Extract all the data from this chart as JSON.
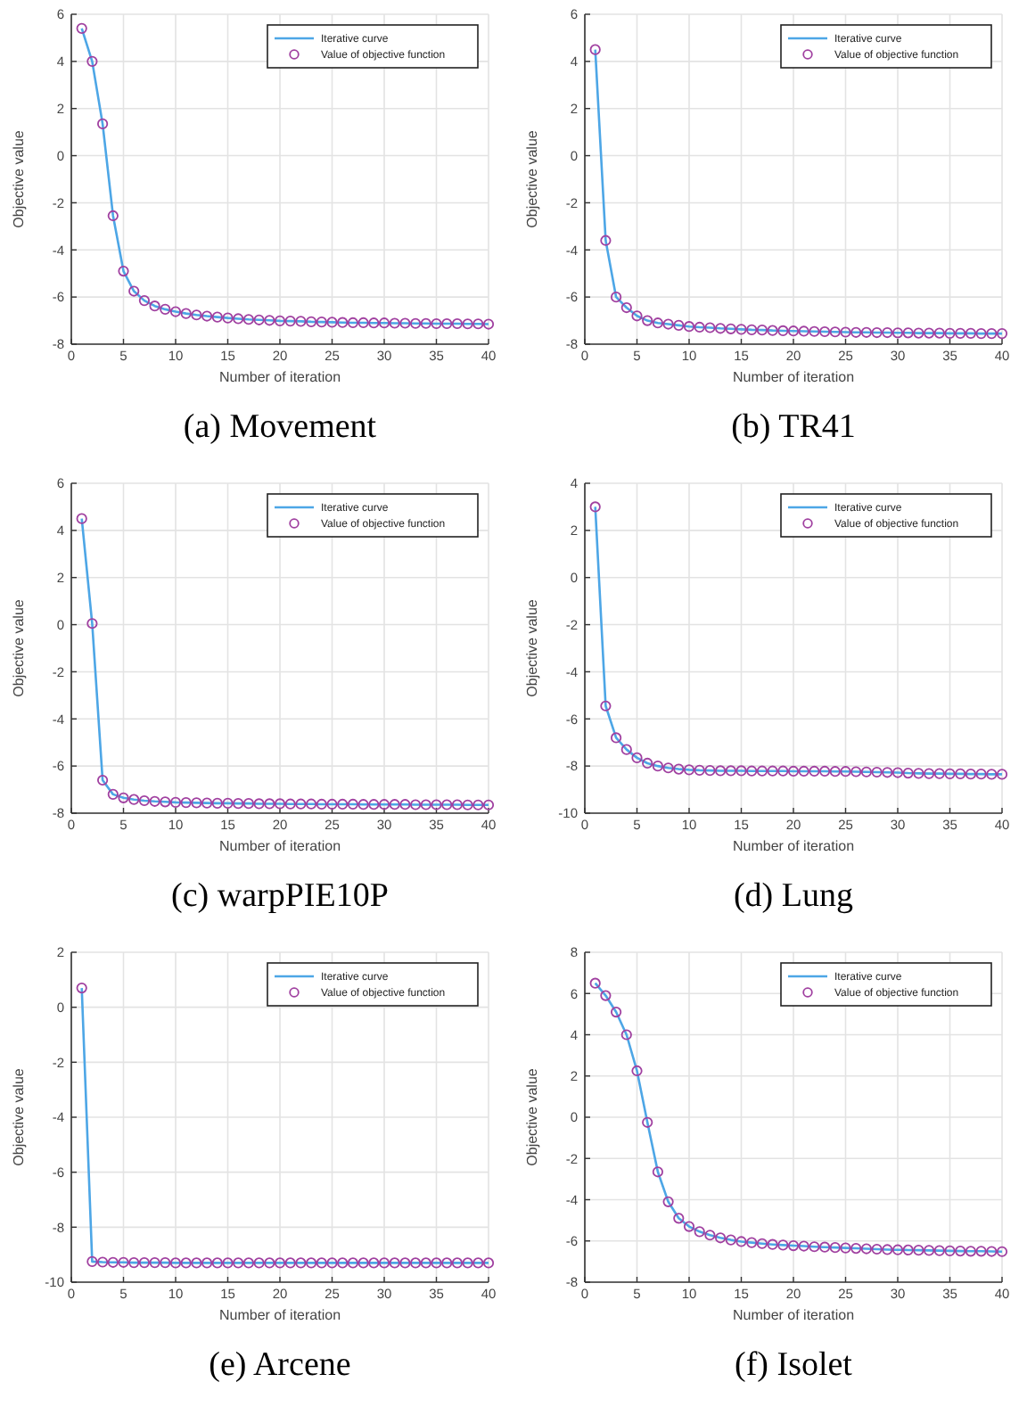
{
  "chart_data": [
    {
      "type": "line",
      "title": "(a) Movement",
      "xlabel": "Number of iteration",
      "ylabel": "Objective value",
      "x": [
        1,
        2,
        3,
        4,
        5,
        6,
        7,
        8,
        9,
        10,
        11,
        12,
        13,
        14,
        15,
        16,
        17,
        18,
        19,
        20,
        21,
        22,
        23,
        24,
        25,
        26,
        27,
        28,
        29,
        30,
        31,
        32,
        33,
        34,
        35,
        36,
        37,
        38,
        39,
        40
      ],
      "xlim": [
        0,
        40
      ],
      "xticks": [
        0,
        5,
        10,
        15,
        20,
        25,
        30,
        35,
        40
      ],
      "ylim": [
        -8,
        6
      ],
      "yticks": [
        -8,
        -6,
        -4,
        -2,
        0,
        2,
        4,
        6
      ],
      "grid": true,
      "legend": "top right",
      "series": [
        {
          "name": "Iterative curve",
          "type": "line",
          "marker": "none",
          "color": "#4da6e6",
          "values": [
            5.4,
            4.0,
            1.35,
            -2.55,
            -4.9,
            -5.75,
            -6.15,
            -6.38,
            -6.52,
            -6.62,
            -6.7,
            -6.76,
            -6.81,
            -6.85,
            -6.89,
            -6.92,
            -6.95,
            -6.97,
            -6.99,
            -7.01,
            -7.02,
            -7.03,
            -7.05,
            -7.06,
            -7.07,
            -7.08,
            -7.09,
            -7.09,
            -7.1,
            -7.1,
            -7.11,
            -7.11,
            -7.12,
            -7.12,
            -7.13,
            -7.13,
            -7.13,
            -7.14,
            -7.14,
            -7.15
          ]
        },
        {
          "name": "Value of objective function",
          "type": "scatter",
          "marker": "circle",
          "color": "#a040a0",
          "values": [
            5.4,
            4.0,
            1.35,
            -2.55,
            -4.9,
            -5.75,
            -6.15,
            -6.38,
            -6.52,
            -6.62,
            -6.7,
            -6.76,
            -6.81,
            -6.85,
            -6.89,
            -6.92,
            -6.95,
            -6.97,
            -6.99,
            -7.01,
            -7.02,
            -7.03,
            -7.05,
            -7.06,
            -7.07,
            -7.08,
            -7.09,
            -7.09,
            -7.1,
            -7.1,
            -7.11,
            -7.11,
            -7.12,
            -7.12,
            -7.13,
            -7.13,
            -7.13,
            -7.14,
            -7.14,
            -7.15
          ]
        }
      ]
    },
    {
      "type": "line",
      "title": "(b) TR41",
      "xlabel": "Number of iteration",
      "ylabel": "Objective value",
      "x": [
        1,
        2,
        3,
        4,
        5,
        6,
        7,
        8,
        9,
        10,
        11,
        12,
        13,
        14,
        15,
        16,
        17,
        18,
        19,
        20,
        21,
        22,
        23,
        24,
        25,
        26,
        27,
        28,
        29,
        30,
        31,
        32,
        33,
        34,
        35,
        36,
        37,
        38,
        39,
        40
      ],
      "xlim": [
        0,
        40
      ],
      "xticks": [
        0,
        5,
        10,
        15,
        20,
        25,
        30,
        35,
        40
      ],
      "ylim": [
        -8,
        6
      ],
      "yticks": [
        -8,
        -6,
        -4,
        -2,
        0,
        2,
        4,
        6
      ],
      "grid": true,
      "legend": "top right",
      "series": [
        {
          "name": "Iterative curve",
          "type": "line",
          "marker": "none",
          "color": "#4da6e6",
          "values": [
            4.5,
            -3.6,
            -6.0,
            -6.45,
            -6.8,
            -7.0,
            -7.1,
            -7.15,
            -7.2,
            -7.25,
            -7.28,
            -7.3,
            -7.33,
            -7.35,
            -7.37,
            -7.39,
            -7.4,
            -7.42,
            -7.43,
            -7.44,
            -7.45,
            -7.46,
            -7.47,
            -7.48,
            -7.49,
            -7.5,
            -7.5,
            -7.51,
            -7.51,
            -7.52,
            -7.52,
            -7.53,
            -7.53,
            -7.53,
            -7.54,
            -7.54,
            -7.54,
            -7.55,
            -7.55,
            -7.55
          ]
        },
        {
          "name": "Value of objective function",
          "type": "scatter",
          "marker": "circle",
          "color": "#a040a0",
          "values": [
            4.5,
            -3.6,
            -6.0,
            -6.45,
            -6.8,
            -7.0,
            -7.1,
            -7.15,
            -7.2,
            -7.25,
            -7.28,
            -7.3,
            -7.33,
            -7.35,
            -7.37,
            -7.39,
            -7.4,
            -7.42,
            -7.43,
            -7.44,
            -7.45,
            -7.46,
            -7.47,
            -7.48,
            -7.49,
            -7.5,
            -7.5,
            -7.51,
            -7.51,
            -7.52,
            -7.52,
            -7.53,
            -7.53,
            -7.53,
            -7.54,
            -7.54,
            -7.54,
            -7.55,
            -7.55,
            -7.55
          ]
        }
      ]
    },
    {
      "type": "line",
      "title": "(c) warpPIE10P",
      "xlabel": "Number of iteration",
      "ylabel": "Objective value",
      "x": [
        1,
        2,
        3,
        4,
        5,
        6,
        7,
        8,
        9,
        10,
        11,
        12,
        13,
        14,
        15,
        16,
        17,
        18,
        19,
        20,
        21,
        22,
        23,
        24,
        25,
        26,
        27,
        28,
        29,
        30,
        31,
        32,
        33,
        34,
        35,
        36,
        37,
        38,
        39,
        40
      ],
      "xlim": [
        0,
        40
      ],
      "xticks": [
        0,
        5,
        10,
        15,
        20,
        25,
        30,
        35,
        40
      ],
      "ylim": [
        -8,
        6
      ],
      "yticks": [
        -8,
        -6,
        -4,
        -2,
        0,
        2,
        4,
        6
      ],
      "grid": true,
      "legend": "top right",
      "series": [
        {
          "name": "Iterative curve",
          "type": "line",
          "marker": "none",
          "color": "#4da6e6",
          "values": [
            4.5,
            0.05,
            -6.6,
            -7.2,
            -7.35,
            -7.42,
            -7.47,
            -7.5,
            -7.52,
            -7.54,
            -7.55,
            -7.56,
            -7.57,
            -7.58,
            -7.58,
            -7.59,
            -7.59,
            -7.6,
            -7.6,
            -7.6,
            -7.61,
            -7.61,
            -7.61,
            -7.62,
            -7.62,
            -7.62,
            -7.62,
            -7.63,
            -7.63,
            -7.63,
            -7.63,
            -7.63,
            -7.64,
            -7.64,
            -7.64,
            -7.64,
            -7.64,
            -7.65,
            -7.65,
            -7.65
          ]
        },
        {
          "name": "Value of objective function",
          "type": "scatter",
          "marker": "circle",
          "color": "#a040a0",
          "values": [
            4.5,
            0.05,
            -6.6,
            -7.2,
            -7.35,
            -7.42,
            -7.47,
            -7.5,
            -7.52,
            -7.54,
            -7.55,
            -7.56,
            -7.57,
            -7.58,
            -7.58,
            -7.59,
            -7.59,
            -7.6,
            -7.6,
            -7.6,
            -7.61,
            -7.61,
            -7.61,
            -7.62,
            -7.62,
            -7.62,
            -7.62,
            -7.63,
            -7.63,
            -7.63,
            -7.63,
            -7.63,
            -7.64,
            -7.64,
            -7.64,
            -7.64,
            -7.64,
            -7.65,
            -7.65,
            -7.65
          ]
        }
      ]
    },
    {
      "type": "line",
      "title": "(d) Lung",
      "xlabel": "Number of iteration",
      "ylabel": "Objective value",
      "x": [
        1,
        2,
        3,
        4,
        5,
        6,
        7,
        8,
        9,
        10,
        11,
        12,
        13,
        14,
        15,
        16,
        17,
        18,
        19,
        20,
        21,
        22,
        23,
        24,
        25,
        26,
        27,
        28,
        29,
        30,
        31,
        32,
        33,
        34,
        35,
        36,
        37,
        38,
        39,
        40
      ],
      "xlim": [
        0,
        40
      ],
      "xticks": [
        0,
        5,
        10,
        15,
        20,
        25,
        30,
        35,
        40
      ],
      "ylim": [
        -10,
        4
      ],
      "yticks": [
        -10,
        -8,
        -6,
        -4,
        -2,
        0,
        2,
        4
      ],
      "grid": true,
      "legend": "top right",
      "series": [
        {
          "name": "Iterative curve",
          "type": "line",
          "marker": "none",
          "color": "#4da6e6",
          "values": [
            3.0,
            -5.45,
            -6.8,
            -7.3,
            -7.65,
            -7.88,
            -8.0,
            -8.08,
            -8.13,
            -8.16,
            -8.18,
            -8.19,
            -8.2,
            -8.2,
            -8.2,
            -8.21,
            -8.21,
            -8.21,
            -8.21,
            -8.22,
            -8.22,
            -8.22,
            -8.22,
            -8.23,
            -8.23,
            -8.24,
            -8.25,
            -8.26,
            -8.27,
            -8.28,
            -8.3,
            -8.31,
            -8.32,
            -8.32,
            -8.33,
            -8.33,
            -8.34,
            -8.34,
            -8.35,
            -8.35
          ]
        },
        {
          "name": "Value of objective function",
          "type": "scatter",
          "marker": "circle",
          "color": "#a040a0",
          "values": [
            3.0,
            -5.45,
            -6.8,
            -7.3,
            -7.65,
            -7.88,
            -8.0,
            -8.08,
            -8.13,
            -8.16,
            -8.18,
            -8.19,
            -8.2,
            -8.2,
            -8.2,
            -8.21,
            -8.21,
            -8.21,
            -8.21,
            -8.22,
            -8.22,
            -8.22,
            -8.22,
            -8.23,
            -8.23,
            -8.24,
            -8.25,
            -8.26,
            -8.27,
            -8.28,
            -8.3,
            -8.31,
            -8.32,
            -8.32,
            -8.33,
            -8.33,
            -8.34,
            -8.34,
            -8.35,
            -8.35
          ]
        }
      ]
    },
    {
      "type": "line",
      "title": "(e) Arcene",
      "xlabel": "Number of iteration",
      "ylabel": "Objective value",
      "x": [
        1,
        2,
        3,
        4,
        5,
        6,
        7,
        8,
        9,
        10,
        11,
        12,
        13,
        14,
        15,
        16,
        17,
        18,
        19,
        20,
        21,
        22,
        23,
        24,
        25,
        26,
        27,
        28,
        29,
        30,
        31,
        32,
        33,
        34,
        35,
        36,
        37,
        38,
        39,
        40
      ],
      "xlim": [
        0,
        40
      ],
      "xticks": [
        0,
        5,
        10,
        15,
        20,
        25,
        30,
        35,
        40
      ],
      "ylim": [
        -10,
        2
      ],
      "yticks": [
        -10,
        -8,
        -6,
        -4,
        -2,
        0,
        2
      ],
      "grid": true,
      "legend": "top right",
      "series": [
        {
          "name": "Iterative curve",
          "type": "line",
          "marker": "none",
          "color": "#4da6e6",
          "values": [
            0.7,
            -9.25,
            -9.27,
            -9.28,
            -9.28,
            -9.29,
            -9.29,
            -9.29,
            -9.29,
            -9.3,
            -9.3,
            -9.3,
            -9.3,
            -9.3,
            -9.3,
            -9.3,
            -9.3,
            -9.3,
            -9.3,
            -9.3,
            -9.3,
            -9.3,
            -9.3,
            -9.3,
            -9.3,
            -9.3,
            -9.3,
            -9.3,
            -9.3,
            -9.3,
            -9.3,
            -9.3,
            -9.3,
            -9.3,
            -9.3,
            -9.3,
            -9.3,
            -9.3,
            -9.3,
            -9.3
          ]
        },
        {
          "name": "Value of objective function",
          "type": "scatter",
          "marker": "circle",
          "color": "#a040a0",
          "values": [
            0.7,
            -9.25,
            -9.27,
            -9.28,
            -9.28,
            -9.29,
            -9.29,
            -9.29,
            -9.29,
            -9.3,
            -9.3,
            -9.3,
            -9.3,
            -9.3,
            -9.3,
            -9.3,
            -9.3,
            -9.3,
            -9.3,
            -9.3,
            -9.3,
            -9.3,
            -9.3,
            -9.3,
            -9.3,
            -9.3,
            -9.3,
            -9.3,
            -9.3,
            -9.3,
            -9.3,
            -9.3,
            -9.3,
            -9.3,
            -9.3,
            -9.3,
            -9.3,
            -9.3,
            -9.3,
            -9.3
          ]
        }
      ]
    },
    {
      "type": "line",
      "title": "(f) Isolet",
      "xlabel": "Number of iteration",
      "ylabel": "Objective value",
      "x": [
        1,
        2,
        3,
        4,
        5,
        6,
        7,
        8,
        9,
        10,
        11,
        12,
        13,
        14,
        15,
        16,
        17,
        18,
        19,
        20,
        21,
        22,
        23,
        24,
        25,
        26,
        27,
        28,
        29,
        30,
        31,
        32,
        33,
        34,
        35,
        36,
        37,
        38,
        39,
        40
      ],
      "xlim": [
        0,
        40
      ],
      "xticks": [
        0,
        5,
        10,
        15,
        20,
        25,
        30,
        35,
        40
      ],
      "ylim": [
        -8,
        8
      ],
      "yticks": [
        -8,
        -6,
        -4,
        -2,
        0,
        2,
        4,
        6,
        8
      ],
      "grid": true,
      "legend": "top right",
      "series": [
        {
          "name": "Iterative curve",
          "type": "line",
          "marker": "none",
          "color": "#4da6e6",
          "values": [
            6.5,
            5.9,
            5.1,
            4.0,
            2.25,
            -0.25,
            -2.65,
            -4.1,
            -4.9,
            -5.3,
            -5.55,
            -5.72,
            -5.85,
            -5.95,
            -6.03,
            -6.08,
            -6.13,
            -6.17,
            -6.2,
            -6.23,
            -6.25,
            -6.28,
            -6.3,
            -6.32,
            -6.34,
            -6.36,
            -6.38,
            -6.4,
            -6.42,
            -6.43,
            -6.44,
            -6.45,
            -6.46,
            -6.47,
            -6.48,
            -6.49,
            -6.5,
            -6.5,
            -6.51,
            -6.52
          ]
        },
        {
          "name": "Value of objective function",
          "type": "scatter",
          "marker": "circle",
          "color": "#a040a0",
          "values": [
            6.5,
            5.9,
            5.1,
            4.0,
            2.25,
            -0.25,
            -2.65,
            -4.1,
            -4.9,
            -5.3,
            -5.55,
            -5.72,
            -5.85,
            -5.95,
            -6.03,
            -6.08,
            -6.13,
            -6.17,
            -6.2,
            -6.23,
            -6.25,
            -6.28,
            -6.3,
            -6.32,
            -6.34,
            -6.36,
            -6.38,
            -6.4,
            -6.42,
            -6.43,
            -6.44,
            -6.45,
            -6.46,
            -6.47,
            -6.48,
            -6.49,
            -6.5,
            -6.5,
            -6.51,
            -6.52
          ]
        }
      ]
    }
  ]
}
